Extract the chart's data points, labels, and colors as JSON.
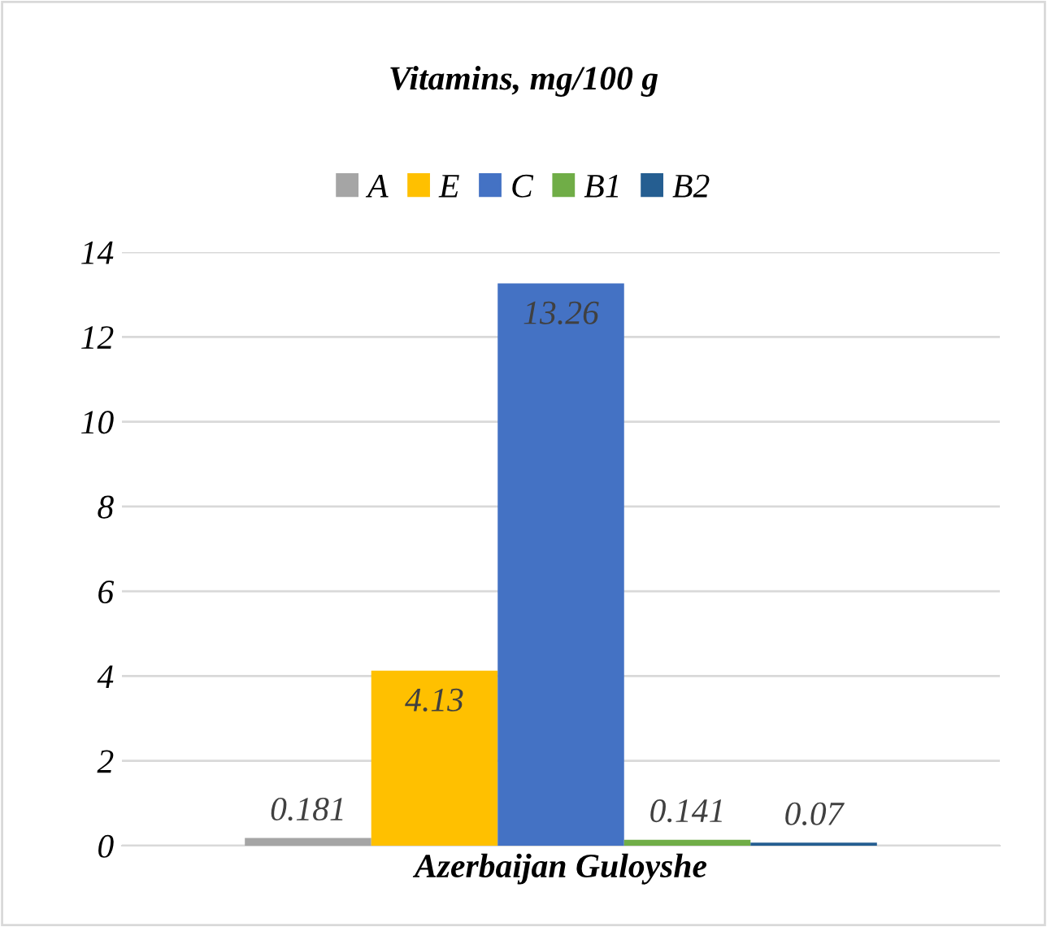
{
  "chart_data": {
    "type": "bar",
    "title": "Vitamins, mg/100 g",
    "categories": [
      "Azerbaijan Guloyshe"
    ],
    "series": [
      {
        "name": "A",
        "color": "#a5a5a5",
        "values": [
          0.181
        ]
      },
      {
        "name": "E",
        "color": "#ffc000",
        "values": [
          4.13
        ]
      },
      {
        "name": "C",
        "color": "#4472c4",
        "values": [
          13.26
        ]
      },
      {
        "name": "B1",
        "color": "#70ad47",
        "values": [
          0.141
        ]
      },
      {
        "name": "B2",
        "color": "#255e91",
        "values": [
          0.07
        ]
      }
    ],
    "ylim": [
      0,
      14
    ],
    "yticks": [
      0,
      2,
      4,
      6,
      8,
      10,
      12,
      14
    ],
    "grid": "y",
    "legend": "top",
    "data_labels": true
  }
}
